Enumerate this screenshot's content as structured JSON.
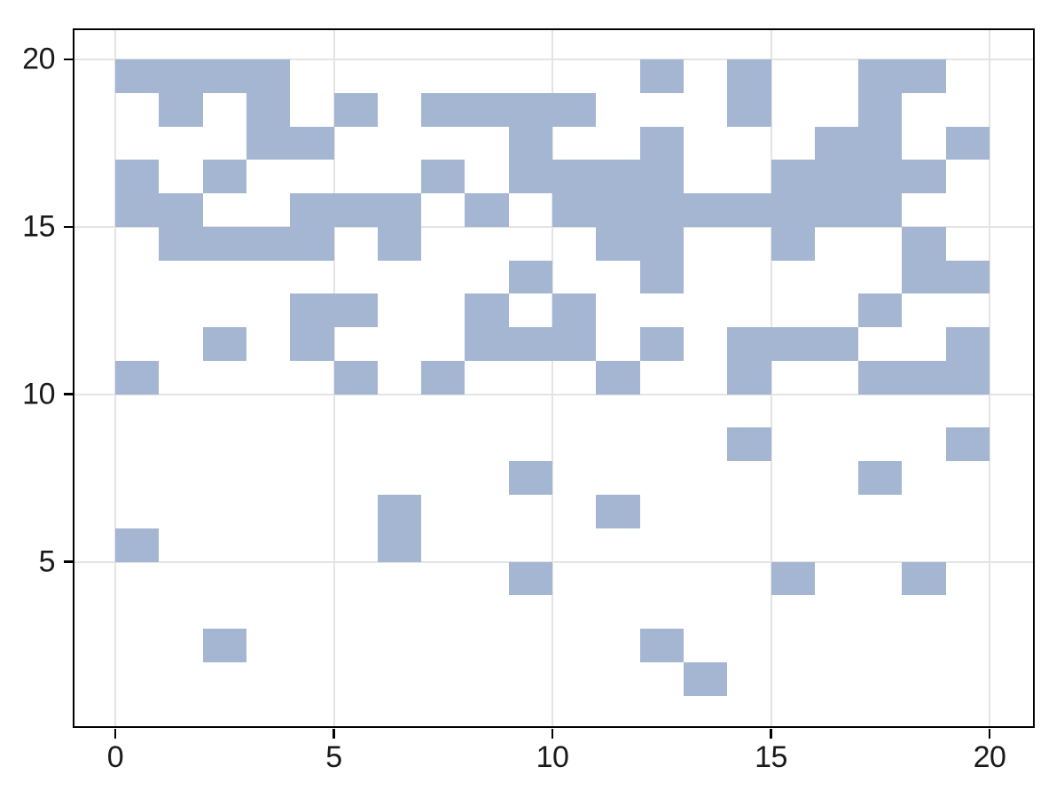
{
  "chart_data": {
    "type": "heatmap",
    "title": "",
    "xlabel": "",
    "ylabel": "",
    "x_ticks": [
      "0",
      "5",
      "10",
      "15",
      "20"
    ],
    "y_ticks": [
      "5",
      "10",
      "15",
      "20"
    ],
    "x_tick_values": [
      0,
      5,
      10,
      15,
      20
    ],
    "y_tick_values": [
      5,
      10,
      15,
      20
    ],
    "x_range": [
      0,
      20
    ],
    "y_range": [
      0,
      20
    ],
    "n_cols": 20,
    "n_rows": 20,
    "grid": true,
    "legend_position": "none",
    "cell_color": "#a4b6d1",
    "empty_color": "#ffffff",
    "gridline_color": "#e4e4e4",
    "spine_color": "#000000",
    "tick_label_color": "#1a1a1a",
    "row_y_values": [
      20,
      19,
      18,
      17,
      16,
      15,
      14,
      13,
      12,
      11,
      10,
      9,
      8,
      7,
      6,
      5,
      4,
      3,
      2,
      1
    ],
    "col_x_values": [
      0,
      1,
      2,
      3,
      4,
      5,
      6,
      7,
      8,
      9,
      10,
      11,
      12,
      13,
      14,
      15,
      16,
      17,
      18,
      19
    ],
    "matrix": [
      [
        1,
        1,
        1,
        1,
        0,
        0,
        0,
        0,
        0,
        0,
        0,
        0,
        1,
        0,
        1,
        0,
        0,
        1,
        1,
        0
      ],
      [
        0,
        1,
        0,
        1,
        0,
        1,
        0,
        1,
        1,
        1,
        1,
        0,
        0,
        0,
        1,
        0,
        0,
        1,
        0,
        0
      ],
      [
        0,
        0,
        0,
        1,
        1,
        0,
        0,
        0,
        0,
        1,
        0,
        0,
        1,
        0,
        0,
        0,
        1,
        1,
        0,
        1
      ],
      [
        1,
        0,
        1,
        0,
        0,
        0,
        0,
        1,
        0,
        1,
        1,
        1,
        1,
        0,
        0,
        1,
        1,
        1,
        1,
        0
      ],
      [
        1,
        1,
        0,
        0,
        1,
        1,
        1,
        0,
        1,
        0,
        1,
        1,
        1,
        1,
        1,
        1,
        1,
        1,
        0,
        0
      ],
      [
        0,
        1,
        1,
        1,
        1,
        0,
        1,
        0,
        0,
        0,
        0,
        1,
        1,
        0,
        0,
        1,
        0,
        0,
        1,
        0
      ],
      [
        0,
        0,
        0,
        0,
        0,
        0,
        0,
        0,
        0,
        1,
        0,
        0,
        1,
        0,
        0,
        0,
        0,
        0,
        1,
        1
      ],
      [
        0,
        0,
        0,
        0,
        1,
        1,
        0,
        0,
        1,
        0,
        1,
        0,
        0,
        0,
        0,
        0,
        0,
        1,
        0,
        0
      ],
      [
        0,
        0,
        1,
        0,
        1,
        0,
        0,
        0,
        1,
        1,
        1,
        0,
        1,
        0,
        1,
        1,
        1,
        0,
        0,
        1
      ],
      [
        1,
        0,
        0,
        0,
        0,
        1,
        0,
        1,
        0,
        0,
        0,
        1,
        0,
        0,
        1,
        0,
        0,
        1,
        1,
        1
      ],
      [
        0,
        0,
        0,
        0,
        0,
        0,
        0,
        0,
        0,
        0,
        0,
        0,
        0,
        0,
        0,
        0,
        0,
        0,
        0,
        0
      ],
      [
        0,
        0,
        0,
        0,
        0,
        0,
        0,
        0,
        0,
        0,
        0,
        0,
        0,
        0,
        1,
        0,
        0,
        0,
        0,
        1
      ],
      [
        0,
        0,
        0,
        0,
        0,
        0,
        0,
        0,
        0,
        1,
        0,
        0,
        0,
        0,
        0,
        0,
        0,
        1,
        0,
        0
      ],
      [
        0,
        0,
        0,
        0,
        0,
        0,
        1,
        0,
        0,
        0,
        0,
        1,
        0,
        0,
        0,
        0,
        0,
        0,
        0,
        0
      ],
      [
        1,
        0,
        0,
        0,
        0,
        0,
        1,
        0,
        0,
        0,
        0,
        0,
        0,
        0,
        0,
        0,
        0,
        0,
        0,
        0
      ],
      [
        0,
        0,
        0,
        0,
        0,
        0,
        0,
        0,
        0,
        1,
        0,
        0,
        0,
        0,
        0,
        1,
        0,
        0,
        1,
        0
      ],
      [
        0,
        0,
        0,
        0,
        0,
        0,
        0,
        0,
        0,
        0,
        0,
        0,
        0,
        0,
        0,
        0,
        0,
        0,
        0,
        0
      ],
      [
        0,
        0,
        1,
        0,
        0,
        0,
        0,
        0,
        0,
        0,
        0,
        0,
        1,
        0,
        0,
        0,
        0,
        0,
        0,
        0
      ],
      [
        0,
        0,
        0,
        0,
        0,
        0,
        0,
        0,
        0,
        0,
        0,
        0,
        0,
        1,
        0,
        0,
        0,
        0,
        0,
        0
      ],
      [
        0,
        0,
        0,
        0,
        0,
        0,
        0,
        0,
        0,
        0,
        0,
        0,
        0,
        0,
        0,
        0,
        0,
        0,
        0,
        0
      ]
    ]
  }
}
